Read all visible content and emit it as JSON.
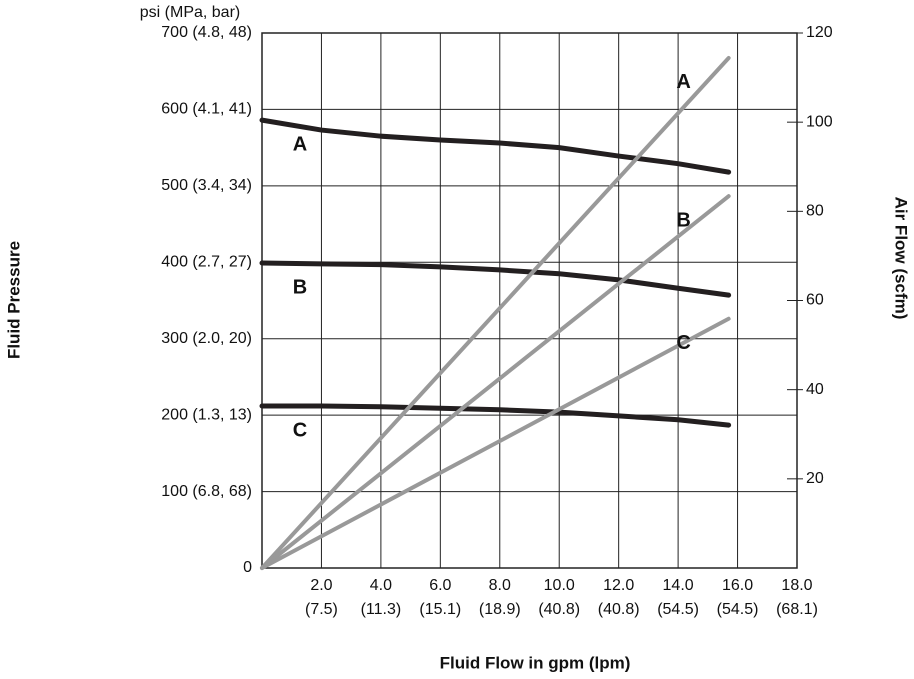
{
  "chart_data": {
    "type": "line",
    "y_unit": "psi (MPa, bar)",
    "y_label": "Fluid Pressure",
    "y2_label": "Air Flow (scfm)",
    "x_label": "Fluid Flow in gpm (lpm)",
    "xlim": [
      0,
      18
    ],
    "xticks": [
      {
        "value": 2,
        "label": "2.0"
      },
      {
        "value": 4,
        "label": "4.0"
      },
      {
        "value": 6,
        "label": "6.0"
      },
      {
        "value": 8,
        "label": "8.0"
      },
      {
        "value": 10,
        "label": "10.0"
      },
      {
        "value": 12,
        "label": "12.0"
      },
      {
        "value": 14,
        "label": "14.0"
      },
      {
        "value": 16,
        "label": "16.0"
      },
      {
        "value": 18,
        "label": "18.0"
      }
    ],
    "xtick_sublabels": [
      "(7.5)",
      "(11.3)",
      "(15.1)",
      "(18.9)",
      "(40.8)",
      "(40.8)",
      "(54.5)",
      "(54.5)",
      "(68.1)"
    ],
    "ylim": [
      0,
      700
    ],
    "yticks": [
      0,
      {
        "value": 100,
        "label": "100 (6.8, 68)"
      },
      {
        "value": 200,
        "label": "200 (1.3, 13)"
      },
      {
        "value": 300,
        "label": "300 (2.0, 20)"
      },
      {
        "value": 400,
        "label": "400 (2.7, 27)"
      },
      {
        "value": 500,
        "label": "500 (3.4, 34)"
      },
      {
        "value": 600,
        "label": "600 (4.1, 41)"
      },
      {
        "value": 700,
        "label": "700 (4.8, 48)"
      }
    ],
    "y2lim": [
      0,
      120
    ],
    "y2ticks": [
      20,
      40,
      60,
      80,
      100,
      120
    ],
    "grid": true,
    "series": [
      {
        "name": "A",
        "color": "#231f20",
        "x": [
          0,
          2,
          4,
          6,
          8,
          10,
          12,
          14,
          15.7
        ],
        "values": [
          586,
          573,
          565,
          560,
          556,
          550,
          539,
          529,
          518
        ]
      },
      {
        "name": "B",
        "color": "#231f20",
        "x": [
          0,
          2,
          4,
          6,
          8,
          10,
          12,
          14,
          15.7
        ],
        "values": [
          399,
          398,
          397,
          394,
          390,
          385,
          377,
          366,
          357
        ]
      },
      {
        "name": "C",
        "color": "#231f20",
        "x": [
          0,
          2,
          4,
          6,
          8,
          10,
          12,
          14,
          15.7
        ],
        "values": [
          212,
          212,
          211,
          209,
          207,
          204,
          199,
          194,
          187
        ]
      },
      {
        "name": "A",
        "color": "#999999",
        "axis": "y2",
        "x": [
          0,
          15.7
        ],
        "values": [
          0,
          114.4
        ]
      },
      {
        "name": "B",
        "color": "#999999",
        "axis": "y2",
        "x": [
          0,
          15.7
        ],
        "values": [
          0,
          83.4
        ]
      },
      {
        "name": "C",
        "color": "#999999",
        "axis": "y2",
        "x": [
          0,
          15.7
        ],
        "values": [
          0,
          55.9
        ]
      }
    ]
  }
}
